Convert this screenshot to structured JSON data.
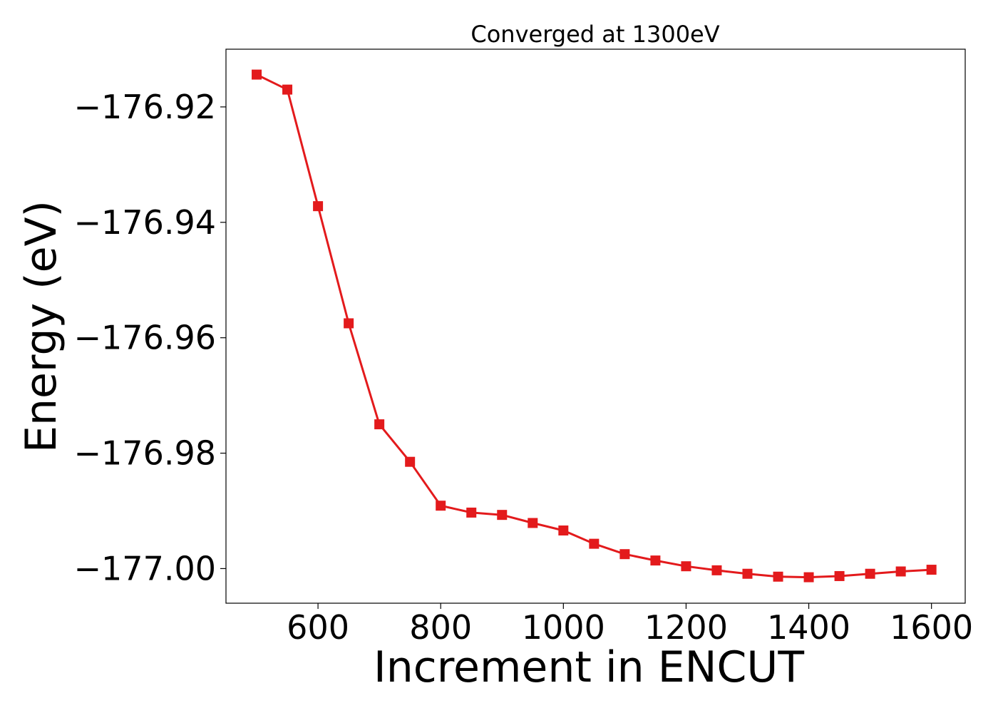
{
  "chart_data": {
    "type": "line",
    "title": "Converged at 1300eV",
    "xlabel": "Increment in ENCUT",
    "ylabel": "Energy (eV)",
    "xlim": [
      450,
      1655
    ],
    "ylim": [
      -177.006,
      -176.91
    ],
    "xticks": [
      600,
      800,
      1000,
      1200,
      1400,
      1600
    ],
    "xtick_labels": [
      "600",
      "800",
      "1000",
      "1200",
      "1400",
      "1600"
    ],
    "yticks": [
      -176.92,
      -176.94,
      -176.96,
      -176.98,
      -177.0
    ],
    "ytick_labels": [
      "−176.92",
      "−176.94",
      "−176.96",
      "−176.98",
      "−177.00"
    ],
    "grid": false,
    "marker": "square",
    "series": [
      {
        "color": "#e31a1c",
        "x": [
          500,
          550,
          600,
          650,
          700,
          750,
          800,
          850,
          900,
          950,
          1000,
          1050,
          1100,
          1150,
          1200,
          1250,
          1300,
          1350,
          1400,
          1450,
          1500,
          1550,
          1600
        ],
        "y": [
          -176.9144,
          -176.917,
          -176.9372,
          -176.9575,
          -176.975,
          -176.9815,
          -176.9891,
          -176.9903,
          -176.9907,
          -176.9921,
          -176.9934,
          -176.9957,
          -176.9975,
          -176.9986,
          -176.9996,
          -177.0003,
          -177.0009,
          -177.0014,
          -177.0015,
          -177.0013,
          -177.0009,
          -177.0005,
          -177.0002
        ]
      }
    ]
  }
}
